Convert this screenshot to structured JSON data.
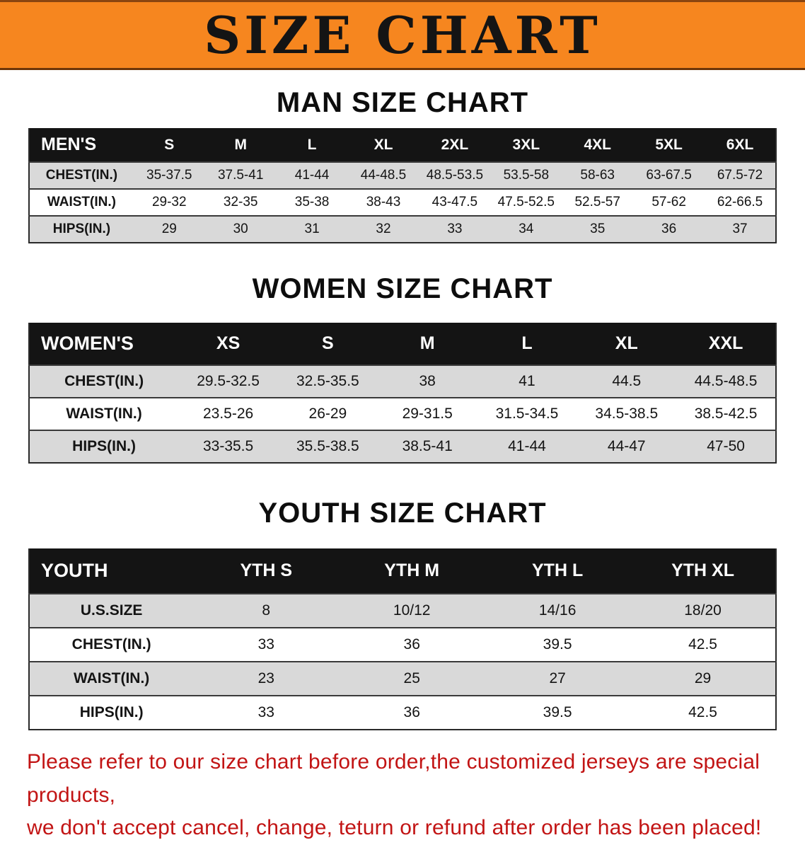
{
  "banner": {
    "title": "SIZE CHART",
    "bg_color": "#f6861f",
    "text_color": "#141414"
  },
  "colors": {
    "table_header_bg": "#141414",
    "row_stripe": "#d9d9d9",
    "footer_red": "#c21414"
  },
  "men": {
    "heading": "MAN SIZE CHART",
    "header": [
      "MEN'S",
      "S",
      "M",
      "L",
      "XL",
      "2XL",
      "3XL",
      "4XL",
      "5XL",
      "6XL"
    ],
    "rows": [
      {
        "label": "CHEST(IN.)",
        "values": [
          "35-37.5",
          "37.5-41",
          "41-44",
          "44-48.5",
          "48.5-53.5",
          "53.5-58",
          "58-63",
          "63-67.5",
          "67.5-72"
        ]
      },
      {
        "label": "WAIST(IN.)",
        "values": [
          "29-32",
          "32-35",
          "35-38",
          "38-43",
          "43-47.5",
          "47.5-52.5",
          "52.5-57",
          "57-62",
          "62-66.5"
        ]
      },
      {
        "label": "HIPS(IN.)",
        "values": [
          "29",
          "30",
          "31",
          "32",
          "33",
          "34",
          "35",
          "36",
          "37"
        ]
      }
    ]
  },
  "women": {
    "heading": "WOMEN SIZE CHART",
    "header": [
      "WOMEN'S",
      "XS",
      "S",
      "M",
      "L",
      "XL",
      "XXL"
    ],
    "rows": [
      {
        "label": "CHEST(IN.)",
        "values": [
          "29.5-32.5",
          "32.5-35.5",
          "38",
          "41",
          "44.5",
          "44.5-48.5"
        ]
      },
      {
        "label": "WAIST(IN.)",
        "values": [
          "23.5-26",
          "26-29",
          "29-31.5",
          "31.5-34.5",
          "34.5-38.5",
          "38.5-42.5"
        ]
      },
      {
        "label": "HIPS(IN.)",
        "values": [
          "33-35.5",
          "35.5-38.5",
          "38.5-41",
          "41-44",
          "44-47",
          "47-50"
        ]
      }
    ]
  },
  "youth": {
    "heading": "YOUTH SIZE CHART",
    "header": [
      "YOUTH",
      "YTH S",
      "YTH M",
      "YTH L",
      "YTH XL"
    ],
    "rows": [
      {
        "label": "U.S.SIZE",
        "values": [
          "8",
          "10/12",
          "14/16",
          "18/20"
        ]
      },
      {
        "label": "CHEST(IN.)",
        "values": [
          "33",
          "36",
          "39.5",
          "42.5"
        ]
      },
      {
        "label": "WAIST(IN.)",
        "values": [
          "23",
          "25",
          "27",
          "29"
        ]
      },
      {
        "label": "HIPS(IN.)",
        "values": [
          "33",
          "36",
          "39.5",
          "42.5"
        ]
      }
    ]
  },
  "footer": {
    "line1": "Please refer to our size chart before order,the customized jerseys are special products,",
    "line2": "we don't accept cancel, change, teturn or refund after order has been placed!"
  }
}
